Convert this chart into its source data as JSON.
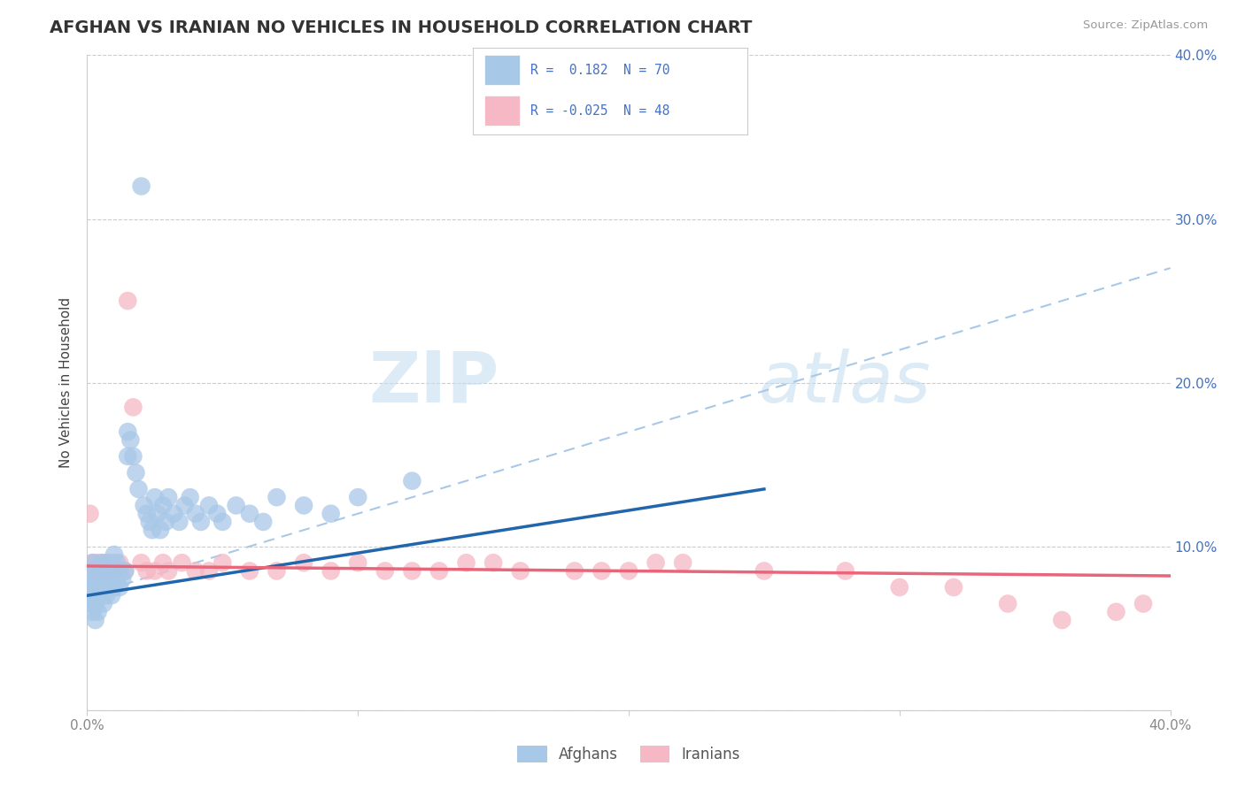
{
  "title": "AFGHAN VS IRANIAN NO VEHICLES IN HOUSEHOLD CORRELATION CHART",
  "source": "Source: ZipAtlas.com",
  "ylabel": "No Vehicles in Household",
  "xlim": [
    0.0,
    0.4
  ],
  "ylim": [
    0.0,
    0.4
  ],
  "xticks": [
    0.0,
    0.1,
    0.2,
    0.3,
    0.4
  ],
  "xtick_labels": [
    "0.0%",
    "",
    "",
    "",
    "40.0%"
  ],
  "yticks": [
    0.0,
    0.1,
    0.2,
    0.3,
    0.4
  ],
  "ytick_labels_right": [
    "",
    "10.0%",
    "20.0%",
    "30.0%",
    "40.0%"
  ],
  "afghan_color": "#a8c8e8",
  "iranian_color": "#f5b8c4",
  "afghan_line_color": "#2166ac",
  "iranian_line_color": "#e8657a",
  "dash_line_color": "#a8c8e8",
  "background_color": "#ffffff",
  "grid_color": "#cccccc",
  "watermark_zip": "ZIP",
  "watermark_atlas": "atlas",
  "title_color": "#333333",
  "source_color": "#999999",
  "tick_color_right": "#4472c4",
  "tick_color_bottom": "#888888",
  "legend_label_color": "#4472c4",
  "bottom_legend_label_color": "#555555",
  "afghan_scatter_x": [
    0.001,
    0.001,
    0.001,
    0.002,
    0.002,
    0.002,
    0.002,
    0.003,
    0.003,
    0.003,
    0.003,
    0.004,
    0.004,
    0.004,
    0.005,
    0.005,
    0.005,
    0.006,
    0.006,
    0.006,
    0.007,
    0.007,
    0.007,
    0.008,
    0.008,
    0.009,
    0.009,
    0.01,
    0.01,
    0.01,
    0.011,
    0.011,
    0.012,
    0.012,
    0.013,
    0.014,
    0.015,
    0.015,
    0.016,
    0.017,
    0.018,
    0.019,
    0.02,
    0.021,
    0.022,
    0.023,
    0.024,
    0.025,
    0.026,
    0.027,
    0.028,
    0.029,
    0.03,
    0.032,
    0.034,
    0.036,
    0.038,
    0.04,
    0.042,
    0.045,
    0.048,
    0.05,
    0.055,
    0.06,
    0.065,
    0.07,
    0.08,
    0.09,
    0.1,
    0.12
  ],
  "afghan_scatter_y": [
    0.085,
    0.075,
    0.065,
    0.09,
    0.08,
    0.07,
    0.06,
    0.085,
    0.075,
    0.065,
    0.055,
    0.08,
    0.07,
    0.06,
    0.09,
    0.08,
    0.07,
    0.085,
    0.075,
    0.065,
    0.09,
    0.08,
    0.07,
    0.085,
    0.075,
    0.08,
    0.07,
    0.095,
    0.085,
    0.075,
    0.09,
    0.08,
    0.085,
    0.075,
    0.08,
    0.085,
    0.17,
    0.155,
    0.165,
    0.155,
    0.145,
    0.135,
    0.32,
    0.125,
    0.12,
    0.115,
    0.11,
    0.13,
    0.12,
    0.11,
    0.125,
    0.115,
    0.13,
    0.12,
    0.115,
    0.125,
    0.13,
    0.12,
    0.115,
    0.125,
    0.12,
    0.115,
    0.125,
    0.12,
    0.115,
    0.13,
    0.125,
    0.12,
    0.13,
    0.14
  ],
  "iranian_scatter_x": [
    0.001,
    0.002,
    0.002,
    0.003,
    0.004,
    0.005,
    0.006,
    0.007,
    0.008,
    0.009,
    0.01,
    0.012,
    0.014,
    0.015,
    0.017,
    0.02,
    0.022,
    0.025,
    0.028,
    0.03,
    0.035,
    0.04,
    0.045,
    0.05,
    0.06,
    0.07,
    0.08,
    0.09,
    0.1,
    0.11,
    0.13,
    0.15,
    0.18,
    0.2,
    0.22,
    0.25,
    0.28,
    0.3,
    0.32,
    0.34,
    0.36,
    0.38,
    0.39,
    0.12,
    0.14,
    0.16,
    0.19,
    0.21
  ],
  "iranian_scatter_y": [
    0.12,
    0.09,
    0.085,
    0.09,
    0.085,
    0.09,
    0.085,
    0.09,
    0.085,
    0.09,
    0.085,
    0.09,
    0.085,
    0.25,
    0.185,
    0.09,
    0.085,
    0.085,
    0.09,
    0.085,
    0.09,
    0.085,
    0.085,
    0.09,
    0.085,
    0.085,
    0.09,
    0.085,
    0.09,
    0.085,
    0.085,
    0.09,
    0.085,
    0.085,
    0.09,
    0.085,
    0.085,
    0.075,
    0.075,
    0.065,
    0.055,
    0.06,
    0.065,
    0.085,
    0.09,
    0.085,
    0.085,
    0.09
  ],
  "afghan_line_x0": 0.0,
  "afghan_line_y0": 0.07,
  "afghan_line_x1": 0.25,
  "afghan_line_y1": 0.135,
  "iranian_line_x0": 0.0,
  "iranian_line_y0": 0.088,
  "iranian_line_x1": 0.4,
  "iranian_line_y1": 0.082,
  "dash_line_x0": 0.0,
  "dash_line_y0": 0.07,
  "dash_line_x1": 0.4,
  "dash_line_y1": 0.27
}
